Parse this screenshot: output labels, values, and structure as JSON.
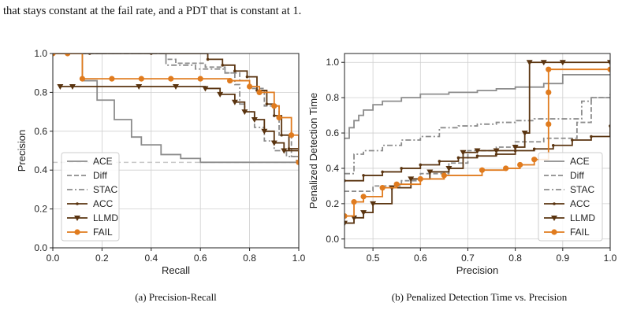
{
  "intro_text": "that stays constant at the fail rate, and a PDT that is constant at 1.",
  "colors": {
    "ACE": "#8c8c8c",
    "Diff": "#8c8c8c",
    "STAC": "#8c8c8c",
    "ACC": "#5a3410",
    "LLMD": "#5a3410",
    "FAIL": "#e07b1e",
    "baseline": "#c8c8c8",
    "grid": "#cfcfcf"
  },
  "chart_data": [
    {
      "type": "line",
      "caption": "(a) Precision-Recall",
      "xlabel": "Recall",
      "ylabel": "Precision",
      "xlim": [
        0.0,
        1.0
      ],
      "ylim": [
        0.0,
        1.0
      ],
      "xticks": [
        "0.0",
        "0.2",
        "0.4",
        "0.6",
        "0.8",
        "1.0"
      ],
      "yticks": [
        "0.0",
        "0.2",
        "0.4",
        "0.6",
        "0.8",
        "1.0"
      ],
      "grid": true,
      "legend_position": "lower-left",
      "baseline": 0.44,
      "series": [
        {
          "name": "ACE",
          "style": "solid",
          "marker": "none",
          "x": [
            0.0,
            0.12,
            0.18,
            0.25,
            0.32,
            0.36,
            0.44,
            0.52,
            0.6,
            0.88,
            1.0
          ],
          "y": [
            1.0,
            0.86,
            0.76,
            0.66,
            0.57,
            0.53,
            0.48,
            0.46,
            0.44,
            0.44,
            0.44
          ]
        },
        {
          "name": "Diff",
          "style": "dashed",
          "marker": "none",
          "x": [
            0.0,
            0.46,
            0.5,
            0.62,
            0.7,
            0.76,
            0.8,
            0.86,
            0.92,
            0.97,
            1.0
          ],
          "y": [
            1.0,
            0.97,
            0.95,
            0.93,
            0.9,
            0.86,
            0.82,
            0.73,
            0.58,
            0.47,
            0.45
          ]
        },
        {
          "name": "STAC",
          "style": "dashdot",
          "marker": "none",
          "x": [
            0.0,
            0.46,
            0.58,
            0.7,
            0.74,
            0.76,
            0.78,
            0.82,
            0.86,
            0.9,
            0.95,
            1.0
          ],
          "y": [
            1.0,
            0.94,
            0.92,
            0.9,
            0.84,
            0.74,
            0.7,
            0.62,
            0.55,
            0.5,
            0.47,
            0.45
          ]
        },
        {
          "name": "ACC",
          "style": "solid",
          "marker": "dot",
          "x": [
            0.0,
            0.15,
            0.4,
            0.63,
            0.69,
            0.74,
            0.79,
            0.83,
            0.87,
            0.9,
            0.93,
            0.96,
            1.0
          ],
          "y": [
            1.0,
            1.0,
            1.0,
            0.97,
            0.94,
            0.91,
            0.88,
            0.81,
            0.74,
            0.68,
            0.58,
            0.51,
            0.44
          ]
        },
        {
          "name": "LLMD",
          "style": "solid",
          "marker": "triangle-down",
          "x": [
            0.03,
            0.08,
            0.35,
            0.5,
            0.62,
            0.68,
            0.74,
            0.78,
            0.82,
            0.86,
            0.9,
            0.94,
            1.0
          ],
          "y": [
            0.83,
            0.83,
            0.83,
            0.83,
            0.82,
            0.79,
            0.75,
            0.7,
            0.66,
            0.6,
            0.54,
            0.5,
            0.44
          ]
        },
        {
          "name": "FAIL",
          "style": "solid",
          "marker": "dot",
          "x": [
            0.0,
            0.06,
            0.12,
            0.24,
            0.36,
            0.48,
            0.6,
            0.72,
            0.8,
            0.84,
            0.9,
            0.92,
            0.97,
            1.0
          ],
          "y": [
            1.0,
            1.0,
            0.87,
            0.87,
            0.87,
            0.87,
            0.87,
            0.86,
            0.83,
            0.8,
            0.73,
            0.67,
            0.58,
            0.44
          ]
        }
      ]
    },
    {
      "type": "line",
      "caption": "(b) Penalized Detection Time vs. Precision",
      "xlabel": "Precision",
      "ylabel": "Penalized Detection Time",
      "xlim": [
        0.44,
        1.0
      ],
      "ylim": [
        -0.05,
        1.05
      ],
      "xticks": [
        "0.5",
        "0.6",
        "0.7",
        "0.8",
        "0.9",
        "1.0"
      ],
      "yticks": [
        "0.0",
        "0.2",
        "0.4",
        "0.6",
        "0.8",
        "1.0"
      ],
      "grid": true,
      "legend_position": "lower-right",
      "series": [
        {
          "name": "ACE",
          "style": "solid",
          "marker": "none",
          "x": [
            0.44,
            0.45,
            0.46,
            0.47,
            0.48,
            0.5,
            0.52,
            0.56,
            0.6,
            0.66,
            0.72,
            0.76,
            0.8,
            0.86,
            0.9,
            1.0
          ],
          "y": [
            0.57,
            0.63,
            0.67,
            0.7,
            0.73,
            0.76,
            0.78,
            0.8,
            0.82,
            0.83,
            0.84,
            0.85,
            0.86,
            0.88,
            0.93,
            0.93
          ]
        },
        {
          "name": "Diff",
          "style": "dashed",
          "marker": "none",
          "x": [
            0.44,
            0.5,
            0.56,
            0.6,
            0.66,
            0.7,
            0.76,
            0.8,
            0.86,
            0.9,
            0.93,
            0.96,
            1.0
          ],
          "y": [
            0.27,
            0.3,
            0.33,
            0.37,
            0.43,
            0.5,
            0.52,
            0.55,
            0.57,
            0.57,
            0.66,
            0.8,
            0.82
          ]
        },
        {
          "name": "STAC",
          "style": "dashdot",
          "marker": "none",
          "x": [
            0.44,
            0.46,
            0.48,
            0.52,
            0.56,
            0.6,
            0.64,
            0.68,
            0.72,
            0.76,
            0.8,
            0.84,
            0.9,
            0.94,
            0.96,
            1.0
          ],
          "y": [
            0.37,
            0.48,
            0.5,
            0.53,
            0.56,
            0.58,
            0.63,
            0.64,
            0.65,
            0.66,
            0.67,
            0.68,
            0.68,
            0.78,
            0.8,
            0.8
          ]
        },
        {
          "name": "ACC",
          "style": "solid",
          "marker": "dot",
          "x": [
            0.44,
            0.48,
            0.52,
            0.56,
            0.6,
            0.64,
            0.68,
            0.72,
            0.76,
            0.8,
            0.84,
            0.88,
            0.92,
            0.96,
            1.0
          ],
          "y": [
            0.33,
            0.36,
            0.38,
            0.4,
            0.42,
            0.44,
            0.46,
            0.47,
            0.48,
            0.5,
            0.51,
            0.53,
            0.56,
            0.58,
            0.64
          ]
        },
        {
          "name": "LLMD",
          "style": "solid",
          "marker": "triangle-down",
          "x": [
            0.44,
            0.46,
            0.48,
            0.5,
            0.54,
            0.58,
            0.62,
            0.66,
            0.69,
            0.72,
            0.76,
            0.8,
            0.82,
            0.83,
            0.86,
            0.9,
            1.0
          ],
          "y": [
            0.09,
            0.12,
            0.15,
            0.2,
            0.29,
            0.34,
            0.38,
            0.4,
            0.49,
            0.5,
            0.5,
            0.52,
            0.6,
            1.0,
            1.0,
            1.0,
            1.0
          ]
        },
        {
          "name": "FAIL",
          "style": "solid",
          "marker": "dot",
          "x": [
            0.44,
            0.46,
            0.48,
            0.52,
            0.55,
            0.6,
            0.65,
            0.73,
            0.78,
            0.81,
            0.84,
            0.87,
            0.87,
            0.87,
            1.0
          ],
          "y": [
            0.13,
            0.21,
            0.24,
            0.29,
            0.31,
            0.34,
            0.36,
            0.39,
            0.4,
            0.42,
            0.45,
            0.65,
            0.83,
            0.96,
            0.96
          ]
        }
      ]
    }
  ]
}
